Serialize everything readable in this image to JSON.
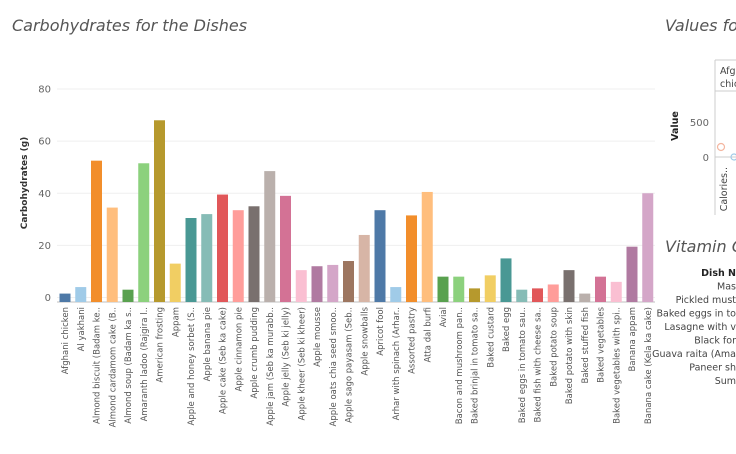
{
  "chart_title": "Carbohydrates for the Dishes",
  "right_title": "Values for",
  "right_title2": "Vitamin C",
  "right_panel": {
    "box_text1": "Afgha",
    "box_text2": "chic",
    "value_label": "Value",
    "tick_500": "500",
    "tick_0": "0",
    "calories_label": "Calories..",
    "dish_header": "Dish N",
    "dish_list": [
      "Mas",
      "Pickled must",
      "Baked eggs in to",
      "Lasagne with v",
      "Black for",
      "Guava raita (Ama",
      "Paneer sh",
      "Sum"
    ]
  },
  "colors": [
    "#4e79a7",
    "#a0cbe8",
    "#f28e2b",
    "#ffbe7d",
    "#59a14f",
    "#8cd17d",
    "#b6992d",
    "#f1ce63",
    "#499894",
    "#86bcb6",
    "#e15759",
    "#ff9d9a",
    "#79706e",
    "#bab0ac",
    "#d37295",
    "#fabfd2",
    "#b07aa1",
    "#d4a6c8",
    "#9d7660",
    "#d7b5a6"
  ],
  "chart_data": {
    "type": "bar",
    "ylabel": "Carbohydrates (g)",
    "ylim": [
      0,
      84
    ],
    "yticks": [
      0,
      20,
      40,
      60,
      80
    ],
    "categories": [
      "Afghani chicken",
      "Al yakhani",
      "Almond biscuit (Badam ke..",
      "Almond cardamom cake (B..",
      "Almond soup (Badam ka s..",
      "Amaranth ladoo (Rajgira l..",
      "American frosting",
      "Appam",
      "Apple and honey sorbet (S..",
      "Apple banana pie",
      "Apple cake (Seb ka cake)",
      "Apple cinnamon pie",
      "Apple crumb pudding",
      "Apple jam (Seb ka murabb..",
      "Apple jelly (Seb ki jelly)",
      "Apple kheer (Seb ki kheer)",
      "Apple mousse",
      "Apple oats chia seed smoo..",
      "Apple sago payasam (Seb..",
      "Apple snowballs",
      "Apricot fool",
      "Arhar with spinach (Arhar..",
      "Assorted pastry",
      "Atta dal burfi",
      "Avial",
      "Bacon and mushroom pan..",
      "Baked brinjal in tomato sa..",
      "Baked custard",
      "Baked egg",
      "Baked eggs in tomato sau..",
      "Baked fish with cheese sa..",
      "Baked potato soup",
      "Baked potato with skin",
      "Baked stuffed fish",
      "Baked vegetables",
      "Baked vegetables with spi..",
      "Banana appam",
      "Banana cake (Kela ka cake)"
    ],
    "values": [
      1.5,
      4,
      52.5,
      34.5,
      3,
      51.5,
      68,
      13,
      30.5,
      32,
      39.5,
      33.5,
      35,
      48.5,
      39,
      10.5,
      12,
      12.5,
      14,
      24,
      33.5,
      4,
      31.5,
      40.5,
      8,
      8,
      3.5,
      8.5,
      15,
      3,
      3.5,
      5,
      10.5,
      1.5,
      8,
      6,
      19.5,
      40
    ]
  }
}
